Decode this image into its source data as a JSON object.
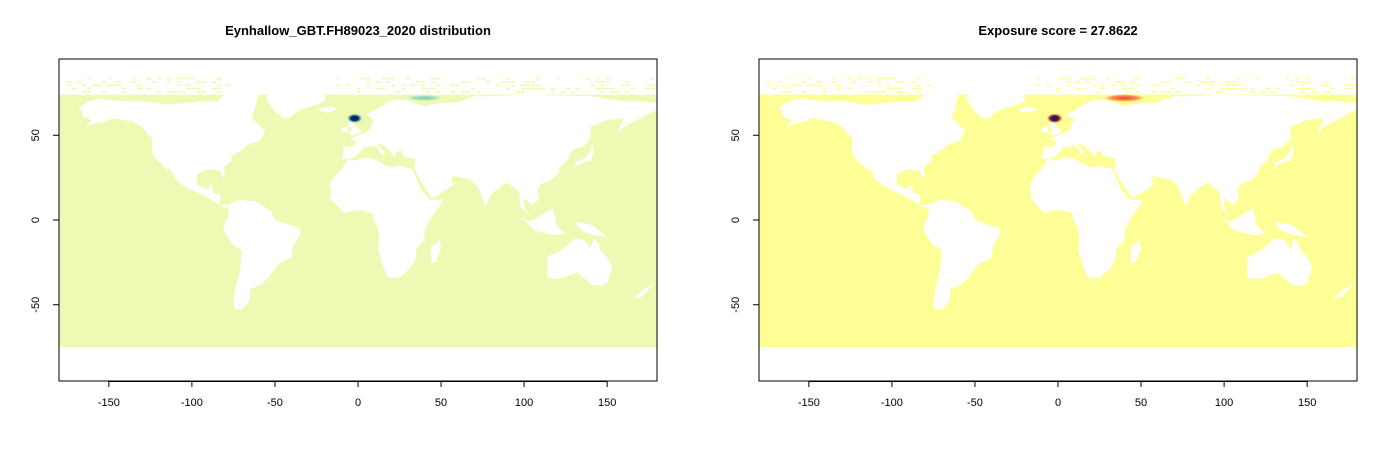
{
  "chart_data": [
    {
      "type": "heatmap",
      "title": "Eynhallow_GBT.FH89023_2020 distribution",
      "xlabel": "",
      "ylabel": "",
      "xlim": [
        -180,
        180
      ],
      "ylim": [
        -95,
        95
      ],
      "x_ticks": [
        -150,
        -100,
        -50,
        0,
        50,
        100,
        150
      ],
      "y_ticks": [
        -50,
        0,
        50
      ],
      "grid": false,
      "legend": "none",
      "colors": {
        "ocean": "#eefab4",
        "mid": "#41b6c4",
        "high": "#081d58"
      },
      "ocean_lat_range": [
        -75,
        74
      ],
      "hotspots": [
        {
          "lon": -2,
          "lat": 60,
          "intensity": 1.0,
          "spread_lon": 5,
          "spread_lat": 3
        },
        {
          "lon": 40,
          "lat": 72,
          "intensity": 0.5,
          "spread_lon": 12,
          "spread_lat": 2
        }
      ]
    },
    {
      "type": "heatmap",
      "title": "Exposure score = 27.8622",
      "xlabel": "",
      "ylabel": "",
      "xlim": [
        -180,
        180
      ],
      "ylim": [
        -95,
        95
      ],
      "x_ticks": [
        -150,
        -100,
        -50,
        0,
        50,
        100,
        150
      ],
      "y_ticks": [
        -50,
        0,
        50
      ],
      "grid": false,
      "legend": "none",
      "colors": {
        "ocean": "#fdff96",
        "mid": "#f03b20",
        "high": "#1a1a5a"
      },
      "ocean_lat_range": [
        -75,
        74
      ],
      "hotspots": [
        {
          "lon": -2,
          "lat": 60,
          "intensity": 1.0,
          "spread_lon": 5,
          "spread_lat": 3
        },
        {
          "lon": 40,
          "lat": 72,
          "intensity": 0.75,
          "spread_lon": 14,
          "spread_lat": 2.5
        }
      ]
    }
  ]
}
